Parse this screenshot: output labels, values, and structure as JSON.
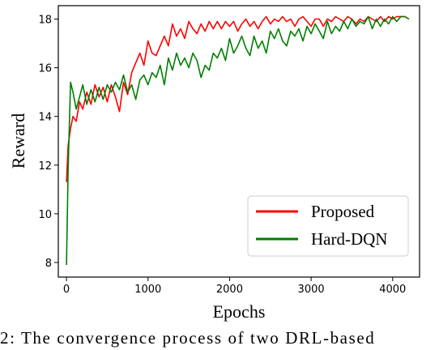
{
  "chart_data": {
    "type": "line",
    "title": "",
    "xlabel": "Epochs",
    "ylabel": "Reward",
    "xlim": [
      -100,
      4330
    ],
    "ylim": [
      7.4,
      18.55
    ],
    "xticks": [
      0,
      1000,
      2000,
      3000,
      4000
    ],
    "yticks": [
      8,
      10,
      12,
      14,
      16,
      18
    ],
    "legend_position": "lower-right",
    "grid": false,
    "series": [
      {
        "name": "Proposed",
        "color": "#ff0000",
        "x": [
          0,
          20,
          50,
          80,
          120,
          160,
          200,
          250,
          300,
          350,
          400,
          450,
          500,
          550,
          600,
          650,
          700,
          750,
          800,
          850,
          900,
          950,
          1000,
          1050,
          1100,
          1150,
          1200,
          1250,
          1300,
          1350,
          1400,
          1450,
          1500,
          1550,
          1600,
          1650,
          1700,
          1750,
          1800,
          1850,
          1900,
          1950,
          2000,
          2050,
          2100,
          2150,
          2200,
          2250,
          2300,
          2350,
          2400,
          2450,
          2500,
          2550,
          2600,
          2650,
          2700,
          2750,
          2800,
          2850,
          2900,
          2950,
          3000,
          3050,
          3100,
          3150,
          3200,
          3250,
          3300,
          3350,
          3400,
          3450,
          3500,
          3550,
          3600,
          3650,
          3700,
          3750,
          3800,
          3850,
          3900,
          3950,
          4000,
          4050,
          4100,
          4150,
          4200
        ],
        "values": [
          11.3,
          12.8,
          13.5,
          14.0,
          13.8,
          14.6,
          14.3,
          15.0,
          14.5,
          15.3,
          14.8,
          15.2,
          14.6,
          15.3,
          14.8,
          14.2,
          15.4,
          14.9,
          15.8,
          16.2,
          16.6,
          16.1,
          17.1,
          16.6,
          16.5,
          16.9,
          17.3,
          16.9,
          17.8,
          17.3,
          17.6,
          17.2,
          17.9,
          17.6,
          17.4,
          17.8,
          17.5,
          17.9,
          17.6,
          17.9,
          17.6,
          17.9,
          17.7,
          17.9,
          17.5,
          17.8,
          18.0,
          17.7,
          17.9,
          17.6,
          17.9,
          18.1,
          17.8,
          18.0,
          17.9,
          18.1,
          17.9,
          18.0,
          17.7,
          18.0,
          18.1,
          17.9,
          17.7,
          18.0,
          18.0,
          17.7,
          18.0,
          17.9,
          18.1,
          18.0,
          17.9,
          18.1,
          18.0,
          17.8,
          18.0,
          17.9,
          18.1,
          18.0,
          17.9,
          18.1,
          17.9,
          18.1,
          18.0,
          18.1,
          18.1,
          18.1,
          18.0
        ]
      },
      {
        "name": "Hard-DQN",
        "color": "#007f00",
        "x": [
          0,
          20,
          50,
          80,
          120,
          160,
          200,
          250,
          300,
          350,
          400,
          450,
          500,
          550,
          600,
          650,
          700,
          750,
          800,
          850,
          900,
          950,
          1000,
          1050,
          1100,
          1150,
          1200,
          1250,
          1300,
          1350,
          1400,
          1450,
          1500,
          1550,
          1600,
          1650,
          1700,
          1750,
          1800,
          1850,
          1900,
          1950,
          2000,
          2050,
          2100,
          2150,
          2200,
          2250,
          2300,
          2350,
          2400,
          2450,
          2500,
          2550,
          2600,
          2650,
          2700,
          2750,
          2800,
          2850,
          2900,
          2950,
          3000,
          3050,
          3100,
          3150,
          3200,
          3250,
          3300,
          3350,
          3400,
          3450,
          3500,
          3550,
          3600,
          3650,
          3700,
          3750,
          3800,
          3850,
          3900,
          3950,
          4000,
          4050,
          4100,
          4150,
          4200
        ],
        "values": [
          7.9,
          11.8,
          15.4,
          15.0,
          14.3,
          14.8,
          15.3,
          14.5,
          15.1,
          14.6,
          15.2,
          14.7,
          15.3,
          15.0,
          15.4,
          15.1,
          15.7,
          15.0,
          15.3,
          14.7,
          15.5,
          15.7,
          15.3,
          15.8,
          15.6,
          16.1,
          15.3,
          16.4,
          15.9,
          16.6,
          16.1,
          16.4,
          16.0,
          16.6,
          16.3,
          15.6,
          16.1,
          15.9,
          16.6,
          16.4,
          16.8,
          16.3,
          17.2,
          16.6,
          16.9,
          17.3,
          16.8,
          16.5,
          17.3,
          16.8,
          17.1,
          16.6,
          17.5,
          17.2,
          17.6,
          17.1,
          16.9,
          17.5,
          17.3,
          17.6,
          17.1,
          17.7,
          17.4,
          17.8,
          17.5,
          17.2,
          17.9,
          17.4,
          17.7,
          17.5,
          17.9,
          17.6,
          18.0,
          17.7,
          17.9,
          17.8,
          18.1,
          17.6,
          18.0,
          17.7,
          18.0,
          17.8,
          18.1,
          17.9,
          18.1,
          18.1,
          18.0
        ]
      }
    ]
  },
  "caption": "2: The convergence process of two DRL-based"
}
